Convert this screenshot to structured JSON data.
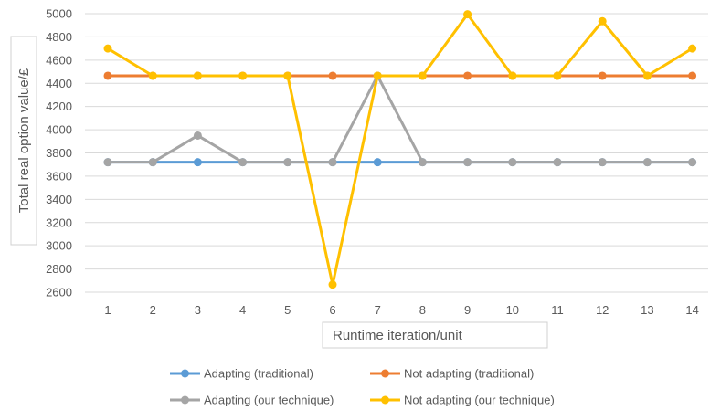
{
  "chart_data": {
    "type": "line",
    "xlabel": "Runtime iteration/unit",
    "ylabel": "Total real option value/£",
    "categories": [
      "1",
      "2",
      "3",
      "4",
      "5",
      "6",
      "7",
      "8",
      "9",
      "10",
      "11",
      "12",
      "13",
      "14"
    ],
    "ylim": [
      2600,
      5000
    ],
    "yticks": [
      "2600",
      "2800",
      "3000",
      "3200",
      "3400",
      "3600",
      "3800",
      "4000",
      "4200",
      "4400",
      "4600",
      "4800",
      "5000"
    ],
    "grid": true,
    "legend_position": "bottom",
    "series": [
      {
        "name": "Adapting (traditional)",
        "color": "#5b9bd5",
        "values": [
          3720,
          3720,
          3720,
          3720,
          3720,
          3720,
          3720,
          3720,
          3720,
          3720,
          3720,
          3720,
          3720,
          3720
        ]
      },
      {
        "name": "Not adapting (traditional)",
        "color": "#ed7d31",
        "values": [
          4465,
          4465,
          4465,
          4465,
          4465,
          4465,
          4465,
          4465,
          4465,
          4465,
          4465,
          4465,
          4465,
          4465
        ]
      },
      {
        "name": "Adapting (our technique)",
        "color": "#a5a5a5",
        "values": [
          3720,
          3720,
          3950,
          3720,
          3720,
          3720,
          4465,
          3720,
          3720,
          3720,
          3720,
          3720,
          3720,
          3720
        ]
      },
      {
        "name": "Not adapting (our technique)",
        "color": "#ffc000",
        "values": [
          4700,
          4465,
          4465,
          4465,
          4465,
          2665,
          4465,
          4465,
          4995,
          4465,
          4465,
          4935,
          4465,
          4700
        ]
      }
    ]
  }
}
